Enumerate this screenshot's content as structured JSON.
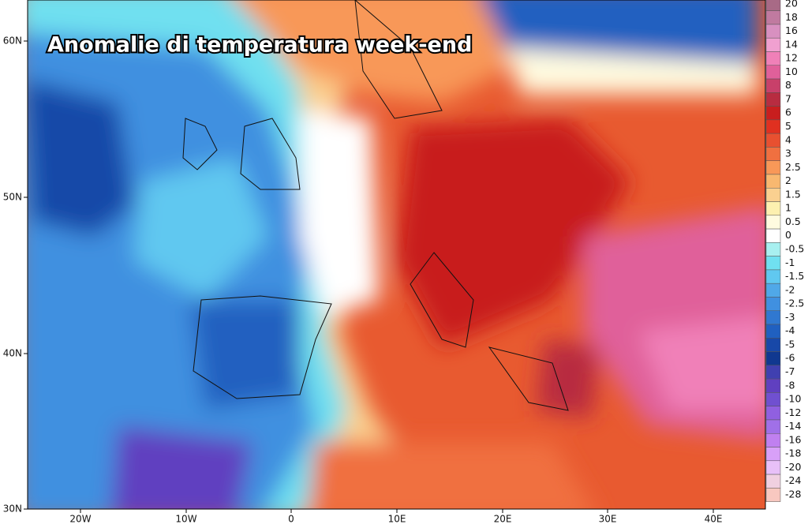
{
  "title": "Anomalie di temperatura week-end",
  "lat_labels": [
    "60N",
    "50N",
    "40N",
    "30N"
  ],
  "lon_labels": [
    "20W",
    "10W",
    "0",
    "10E",
    "20E",
    "30E",
    "40E"
  ],
  "legend": [
    {
      "label": "20",
      "color": "#a86a86"
    },
    {
      "label": "18",
      "color": "#c07aa0"
    },
    {
      "label": "16",
      "color": "#d890c0"
    },
    {
      "label": "14",
      "color": "#f0a0d0"
    },
    {
      "label": "12",
      "color": "#f080b8"
    },
    {
      "label": "10",
      "color": "#e0609a"
    },
    {
      "label": "8",
      "color": "#c8406a"
    },
    {
      "label": "7",
      "color": "#b82c40"
    },
    {
      "label": "6",
      "color": "#c81e1e"
    },
    {
      "label": "5",
      "color": "#e03020"
    },
    {
      "label": "4",
      "color": "#e85030"
    },
    {
      "label": "3",
      "color": "#f07040"
    },
    {
      "label": "2.5",
      "color": "#f89858"
    },
    {
      "label": "2",
      "color": "#f8b870"
    },
    {
      "label": "1.5",
      "color": "#fad090"
    },
    {
      "label": "1",
      "color": "#fdf0b0"
    },
    {
      "label": "0.5",
      "color": "#fffbe0"
    },
    {
      "label": "0",
      "color": "#ffffff"
    },
    {
      "label": "-0.5",
      "color": "#a8f0f0"
    },
    {
      "label": "-1",
      "color": "#70e0f0"
    },
    {
      "label": "-1.5",
      "color": "#60c8f0"
    },
    {
      "label": "-2",
      "color": "#50a8e8"
    },
    {
      "label": "-2.5",
      "color": "#4090e0"
    },
    {
      "label": "-3",
      "color": "#3078d0"
    },
    {
      "label": "-4",
      "color": "#2060c0"
    },
    {
      "label": "-5",
      "color": "#1848a8"
    },
    {
      "label": "-6",
      "color": "#103890"
    },
    {
      "label": "-7",
      "color": "#4040b0"
    },
    {
      "label": "-8",
      "color": "#6040c0"
    },
    {
      "label": "-10",
      "color": "#7050d0"
    },
    {
      "label": "-12",
      "color": "#9060e0"
    },
    {
      "label": "-14",
      "color": "#a070e8"
    },
    {
      "label": "-16",
      "color": "#c080f0"
    },
    {
      "label": "-18",
      "color": "#d8a0f8"
    },
    {
      "label": "-20",
      "color": "#e8c0f8"
    },
    {
      "label": "-24",
      "color": "#f0d0e0"
    },
    {
      "label": "-28",
      "color": "#f8c8c0"
    }
  ]
}
